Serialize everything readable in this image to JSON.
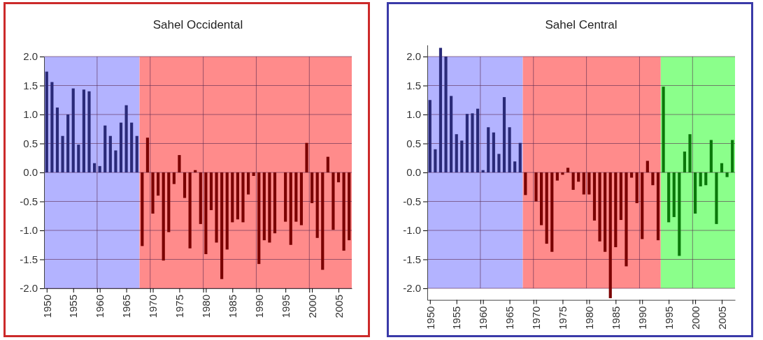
{
  "chart_data": [
    {
      "type": "bar",
      "title": "Sahel Occidental",
      "xlim": [
        1949.5,
        2007.5
      ],
      "ylim": [
        -2,
        2
      ],
      "yticks": [
        {
          "value": 2,
          "label": "2.0"
        },
        {
          "value": 1.5,
          "label": "1.5"
        },
        {
          "value": 1,
          "label": "1.0"
        },
        {
          "value": 0.5,
          "label": "0.5"
        },
        {
          "value": 0,
          "label": "0.0"
        },
        {
          "value": -0.5,
          "label": "-0.5"
        },
        {
          "value": -1,
          "label": "-1.0"
        },
        {
          "value": -1.5,
          "label": "-1.5"
        },
        {
          "value": -2,
          "label": "-2.0"
        }
      ],
      "xticks": [
        1950,
        1955,
        {
          "value": 1959.5,
          "label": null
        },
        1960,
        1965,
        {
          "value": 1969.5,
          "label": null
        },
        1970,
        1975,
        {
          "value": 1979.5,
          "label": null
        },
        1980,
        1985,
        {
          "value": 1989.5,
          "label": null
        },
        1990,
        1995,
        {
          "value": 1999.5,
          "label": null
        },
        2000,
        2005
      ],
      "grid": true,
      "bands": [
        {
          "axis": "x",
          "from": 1949.5,
          "to": 1967.5,
          "color": "#b3b3ff"
        },
        {
          "axis": "x",
          "from": 1967.5,
          "to": 2007.5,
          "color": "#ff8b8b"
        }
      ],
      "series": [
        {
          "color": "#2a2a78",
          "x": [
            1950,
            1951,
            1952,
            1953,
            1954,
            1955,
            1956,
            1957,
            1958,
            1959,
            1960,
            1961,
            1962,
            1963,
            1964,
            1965,
            1966,
            1967
          ],
          "values": [
            1.74,
            1.56,
            1.12,
            0.63,
            1.0,
            1.45,
            0.48,
            1.43,
            1.4,
            0.16,
            0.11,
            0.81,
            0.63,
            0.38,
            0.86,
            1.16,
            0.86,
            0.63
          ]
        },
        {
          "color": "#7a0000",
          "x": [
            1968,
            1969,
            1970,
            1971,
            1972,
            1973,
            1974,
            1975,
            1976,
            1977,
            1978,
            1979,
            1980,
            1981,
            1982,
            1983,
            1984,
            1985,
            1986,
            1987,
            1988,
            1989,
            1990,
            1991,
            1992,
            1993,
            1994,
            1995,
            1996,
            1997,
            1998,
            1999,
            2000,
            2001,
            2002,
            2003,
            2004,
            2005,
            2006,
            2007
          ],
          "values": [
            -1.27,
            0.6,
            -0.71,
            -0.4,
            -1.52,
            -1.03,
            -0.2,
            0.3,
            -0.44,
            -1.31,
            0.04,
            -0.89,
            -1.41,
            -0.65,
            -1.21,
            -1.84,
            -1.33,
            -0.86,
            -0.81,
            -0.86,
            -0.38,
            -0.06,
            -1.58,
            -1.17,
            -1.21,
            -1.05,
            null,
            -0.85,
            -1.25,
            -0.85,
            -0.91,
            0.51,
            -0.53,
            -1.13,
            -1.68,
            0.27,
            -0.99,
            -0.17,
            -1.35,
            -1.17
          ]
        }
      ]
    },
    {
      "type": "bar",
      "title": "Sahel Central",
      "xlim": [
        1949.5,
        2007.5
      ],
      "ylim": [
        -2.2,
        2.2
      ],
      "yticks": [
        {
          "value": 2,
          "label": "2.0"
        },
        {
          "value": 1.5,
          "label": "1.5"
        },
        {
          "value": 1,
          "label": "1.0"
        },
        {
          "value": 0.5,
          "label": "0.5"
        },
        {
          "value": 0,
          "label": "0.0"
        },
        {
          "value": -0.5,
          "label": "-0.5"
        },
        {
          "value": -1,
          "label": "-1.0"
        },
        {
          "value": -1.5,
          "label": "-1.5"
        },
        {
          "value": -2,
          "label": "-2.0"
        }
      ],
      "xticks": [
        1950,
        1955,
        {
          "value": 1959.5,
          "label": null
        },
        1960,
        1965,
        {
          "value": 1969.5,
          "label": null
        },
        1970,
        1975,
        {
          "value": 1979.5,
          "label": null
        },
        1980,
        1985,
        {
          "value": 1989.5,
          "label": null
        },
        1990,
        1995,
        {
          "value": 1999.5,
          "label": null
        },
        2000,
        2005
      ],
      "grid": true,
      "bands": [
        {
          "axis": "x",
          "from": 1949.5,
          "to": 1967.5,
          "color": "#b3b3ff"
        },
        {
          "axis": "x",
          "from": 1967.5,
          "to": 1993.5,
          "color": "#ff8b8b"
        },
        {
          "axis": "x",
          "from": 1993.5,
          "to": 2007.5,
          "color": "#8bff8b"
        }
      ],
      "series": [
        {
          "color": "#2a2a78",
          "x": [
            1950,
            1951,
            1952,
            1953,
            1954,
            1955,
            1956,
            1957,
            1958,
            1959,
            1960,
            1961,
            1962,
            1963,
            1964,
            1965,
            1966,
            1967
          ],
          "values": [
            1.25,
            0.4,
            2.15,
            2.0,
            1.32,
            0.66,
            0.55,
            1.01,
            1.02,
            1.1,
            0.04,
            0.78,
            0.69,
            0.32,
            1.3,
            0.78,
            0.19,
            0.51
          ]
        },
        {
          "color": "#7a0000",
          "x": [
            1968,
            1969,
            1970,
            1971,
            1972,
            1973,
            1974,
            1975,
            1976,
            1977,
            1978,
            1979,
            1980,
            1981,
            1982,
            1983,
            1984,
            1985,
            1986,
            1987,
            1988,
            1989,
            1990,
            1991,
            1992,
            1993
          ],
          "values": [
            -0.39,
            null,
            -0.5,
            -0.91,
            -1.23,
            -1.37,
            -0.14,
            -0.04,
            0.08,
            -0.3,
            -0.16,
            -0.38,
            -0.38,
            -0.83,
            -1.19,
            -1.37,
            -2.17,
            -1.29,
            -0.82,
            -1.62,
            -0.09,
            -0.53,
            -1.15,
            0.2,
            -0.22,
            -1.17
          ]
        },
        {
          "color": "#0a780a",
          "x": [
            1994,
            1995,
            1996,
            1997,
            1998,
            1999,
            2000,
            2001,
            2002,
            2003,
            2004,
            2005,
            2006,
            2007
          ],
          "values": [
            1.48,
            -0.86,
            -0.77,
            -1.44,
            0.36,
            0.66,
            -0.71,
            -0.24,
            -0.22,
            0.56,
            -0.89,
            0.16,
            -0.08,
            0.56
          ]
        }
      ]
    }
  ]
}
